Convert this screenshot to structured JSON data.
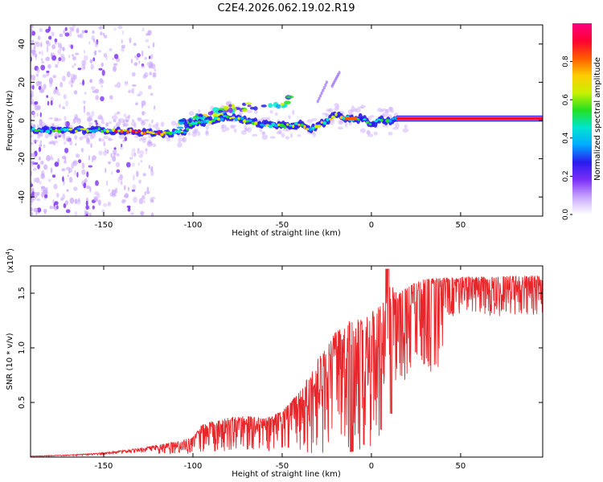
{
  "title": "C2E4.2026.062.19.02.R19",
  "colors": {
    "snr_line": "#e8262a",
    "axis": "#000000",
    "colorbar": [
      "#ffffff",
      "#c9a6ff",
      "#7b2ff7",
      "#2a1cf0",
      "#00aaff",
      "#00e5d0",
      "#22e022",
      "#c8f000",
      "#ffcc00",
      "#ff5a00",
      "#ff0033",
      "#ff0080"
    ]
  },
  "chart_data": [
    {
      "type": "heatmap",
      "name": "spectrogram",
      "xlabel": "Height of straight line (km)",
      "ylabel": "Frequency (Hz)",
      "xlim": [
        -191,
        96
      ],
      "ylim": [
        -50,
        50
      ],
      "xticks": [
        -150,
        -100,
        -50,
        0,
        50
      ],
      "xtick_labels": [
        "-150",
        "-100",
        "-50",
        "0",
        "50"
      ],
      "yticks": [
        -40,
        -20,
        0,
        20,
        40
      ],
      "ytick_labels": [
        "-40",
        "-20",
        "0",
        "20",
        "40"
      ],
      "ridge": {
        "x": [
          -191,
          -170,
          -150,
          -130,
          -115,
          -105,
          -100,
          -90,
          -80,
          -70,
          -60,
          -50,
          -40,
          -35,
          -30,
          -25,
          -20,
          -15,
          -10,
          -5,
          0,
          5,
          10,
          15,
          50,
          96
        ],
        "y": [
          -5,
          -5,
          -5,
          -6,
          -7,
          -6,
          -2,
          0,
          2,
          0,
          -2,
          -3,
          -2,
          -5,
          -3,
          0,
          3,
          1,
          1,
          1,
          -2,
          0,
          0,
          1,
          1,
          1
        ]
      },
      "upper_branch": {
        "x": [
          -110,
          -100,
          -90,
          -80,
          -70,
          -60,
          -50,
          -45
        ],
        "y": [
          -3,
          0,
          3,
          6,
          7,
          8,
          9,
          11
        ]
      },
      "streaks": [
        {
          "x": [
            -30,
            -25
          ],
          "y": [
            10,
            20
          ]
        },
        {
          "x": [
            -22,
            -18
          ],
          "y": [
            18,
            25
          ]
        }
      ],
      "colorbar": {
        "label": "Normalized spectral amplitude",
        "range": [
          0,
          1
        ],
        "ticks": [
          0.0,
          0.2,
          0.4,
          0.6,
          0.8
        ],
        "tick_labels": [
          "0.0",
          "0.2",
          "0.4",
          "0.6",
          "0.8"
        ]
      }
    },
    {
      "type": "line",
      "name": "snr",
      "xlabel": "Height of straight line (km)",
      "ylabel": "SNR (10 * v/v)",
      "multiplier_label": "(x10",
      "multiplier_exponent": "4",
      "xlim": [
        -191,
        96
      ],
      "ylim": [
        0,
        1.75
      ],
      "xticks": [
        -150,
        -100,
        -50,
        0,
        50
      ],
      "xtick_labels": [
        "-150",
        "-100",
        "-50",
        "0",
        "50"
      ],
      "yticks": [
        0.5,
        1.0,
        1.5
      ],
      "ytick_labels": [
        "0.5",
        "1.0",
        "1.5"
      ],
      "envelope_x": [
        -191,
        -170,
        -150,
        -130,
        -120,
        -110,
        -100,
        -95,
        -90,
        -80,
        -70,
        -60,
        -50,
        -40,
        -35,
        -30,
        -25,
        -20,
        -15,
        -10,
        -5,
        0,
        5,
        8,
        10,
        15,
        20,
        25,
        30,
        40,
        50,
        60,
        70,
        80,
        90,
        96
      ],
      "envelope_y": [
        0.01,
        0.02,
        0.04,
        0.08,
        0.11,
        0.14,
        0.18,
        0.3,
        0.32,
        0.36,
        0.38,
        0.35,
        0.42,
        0.6,
        0.75,
        0.9,
        1.0,
        1.15,
        1.2,
        1.3,
        1.25,
        1.32,
        1.42,
        1.55,
        1.6,
        1.5,
        1.55,
        1.6,
        1.63,
        1.64,
        1.65,
        1.65,
        1.65,
        1.66,
        1.66,
        1.66
      ]
    }
  ]
}
